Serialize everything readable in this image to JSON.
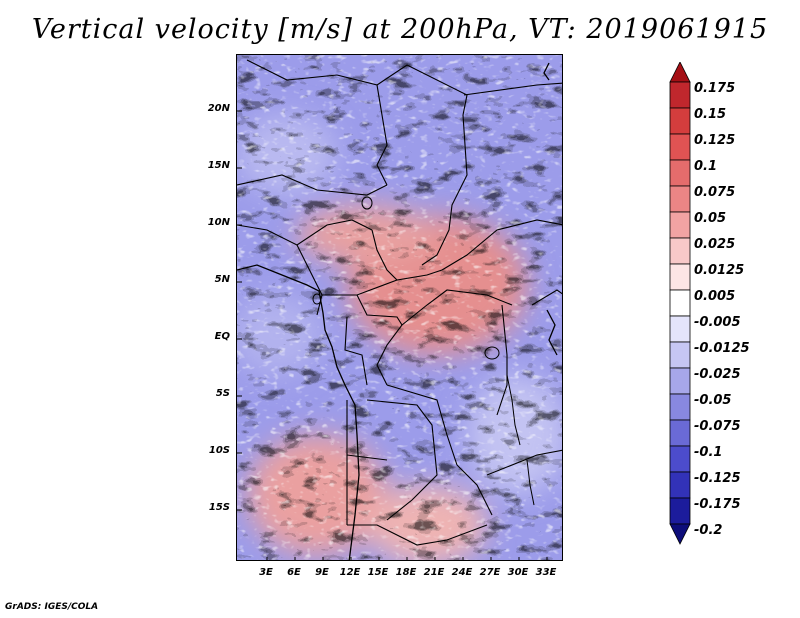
{
  "title": "Vertical velocity [m/s] at 200hPa, VT: 2019061915",
  "credit": "GrADS: IGES/COLA",
  "map": {
    "lat_labels": [
      "20N",
      "15N",
      "10N",
      "5N",
      "EQ",
      "5S",
      "10S",
      "15S"
    ],
    "lon_labels": [
      "3E",
      "6E",
      "9E",
      "12E",
      "15E",
      "18E",
      "21E",
      "24E",
      "27E",
      "30E",
      "33E"
    ]
  },
  "colorbar": {
    "labels": [
      "0.175",
      "0.15",
      "0.125",
      "0.1",
      "0.075",
      "0.05",
      "0.025",
      "0.0125",
      "0.005",
      "-0.005",
      "-0.0125",
      "-0.025",
      "-0.05",
      "-0.075",
      "-0.1",
      "-0.125",
      "-0.175",
      "-0.2"
    ],
    "colors": [
      "#a50f15",
      "#c0272d",
      "#d43d3d",
      "#e05353",
      "#e56c6c",
      "#ec8585",
      "#f2a3a3",
      "#f8c8c8",
      "#fde5e5",
      "#ffffff",
      "#e4e4fb",
      "#c6c6f3",
      "#a7a7ea",
      "#8888e0",
      "#6a6ad6",
      "#4c4ccc",
      "#3232b8",
      "#1c1c9c",
      "#0d0d7a"
    ]
  }
}
